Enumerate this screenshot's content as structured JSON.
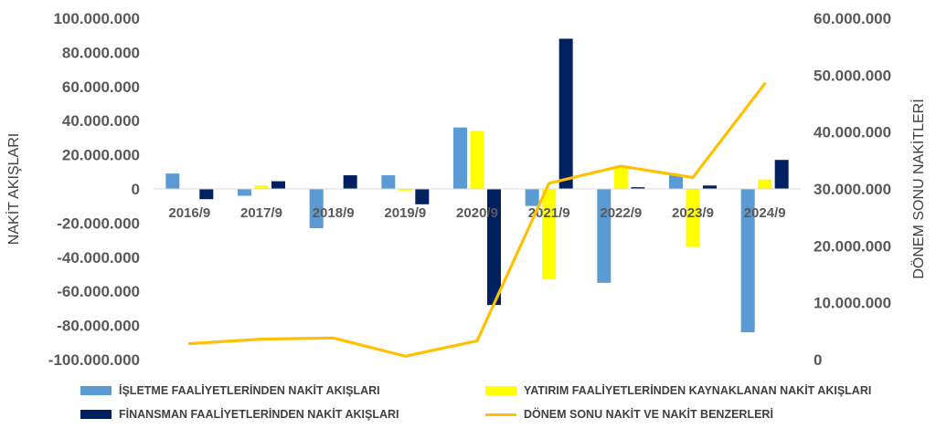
{
  "chart_data": {
    "type": "bar",
    "categories": [
      "2016/9",
      "2017/9",
      "2018/9",
      "2019/9",
      "2020/9",
      "2021/9",
      "2022/9",
      "2023/9",
      "2024/9"
    ],
    "series": [
      {
        "name": "İŞLETME FAALİYETLERİNDEN NAKİT AKIŞLARI",
        "type": "bar",
        "axis": "left",
        "color": "#5B9BD5",
        "values": [
          9000000,
          -4000000,
          -23000000,
          8000000,
          36000000,
          -10000000,
          -55000000,
          8000000,
          -84000000
        ]
      },
      {
        "name": "YATIRIM FAALİYETLERİNDEN KAYNAKLANAN NAKİT AKIŞLARI",
        "type": "bar",
        "axis": "left",
        "color": "#FFFF00",
        "values": [
          0,
          2000000,
          0,
          -1000000,
          34000000,
          -53000000,
          13000000,
          -34000000,
          5500000
        ]
      },
      {
        "name": "FİNANSMAN FAALİYETLERİNDEN NAKİT AKIŞLARI",
        "type": "bar",
        "axis": "left",
        "color": "#002060",
        "values": [
          -6000000,
          4500000,
          8000000,
          -9000000,
          -68000000,
          88000000,
          1000000,
          2000000,
          17000000
        ]
      },
      {
        "name": "DÖNEM SONU NAKİT VE NAKİT BENZERLERİ",
        "type": "line",
        "axis": "right",
        "color": "#FFC000",
        "values": [
          2800000,
          3600000,
          3800000,
          600000,
          3300000,
          31000000,
          34000000,
          32000000,
          48500000
        ]
      }
    ],
    "ylabel": "NAKİT AKIŞLARI",
    "y2label": "DÖNEM SONU NAKİTLERİ",
    "ylim": [
      -100000000,
      100000000
    ],
    "y2lim": [
      0,
      60000000
    ],
    "yticks": [
      -100000000,
      -80000000,
      -60000000,
      -40000000,
      -20000000,
      0,
      20000000,
      40000000,
      60000000,
      80000000,
      100000000
    ],
    "ytick_labels": [
      "-100.000.000",
      "-80.000.000",
      "-60.000.000",
      "-40.000.000",
      "-20.000.000",
      "0",
      "20.000.000",
      "40.000.000",
      "60.000.000",
      "80.000.000",
      "100.000.000"
    ],
    "y2ticks": [
      0,
      10000000,
      20000000,
      30000000,
      40000000,
      50000000,
      60000000
    ],
    "y2tick_labels": [
      "0",
      "10.000.000",
      "20.000.000",
      "30.000.000",
      "40.000.000",
      "50.000.000",
      "60.000.000"
    ],
    "grid": false,
    "legend_position": "bottom"
  }
}
